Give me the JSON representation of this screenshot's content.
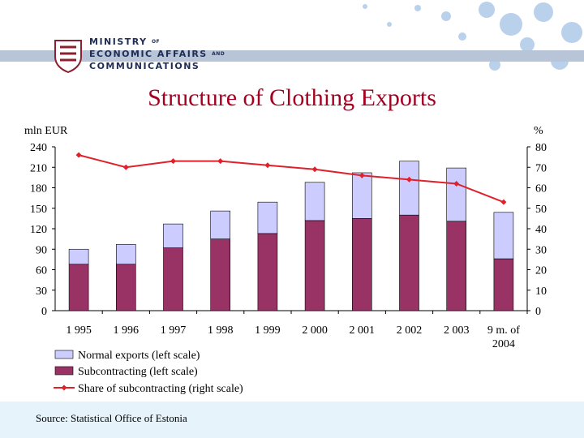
{
  "header": {
    "ministry_line1": "MINISTRY",
    "ministry_of": "OF",
    "ministry_line2": "ECONOMIC AFFAIRS",
    "ministry_and": "AND",
    "ministry_line3": "COMMUNICATIONS"
  },
  "source": "Source: Statistical Office of Estonia",
  "colors": {
    "normal": "#ccccff",
    "subcontracting": "#993366",
    "share": "#e0202a",
    "title": "#a50021"
  },
  "chart_data": {
    "type": "bar",
    "title": "Structure of Clothing Exports",
    "ylabel": "mln EUR",
    "y2label": "%",
    "ylim": [
      0,
      240
    ],
    "y2lim": [
      0,
      80
    ],
    "yticks": [
      "0",
      "30",
      "60",
      "90",
      "120",
      "150",
      "180",
      "210",
      "240"
    ],
    "y2ticks": [
      "0",
      "10",
      "20",
      "30",
      "40",
      "50",
      "60",
      "70",
      "80"
    ],
    "categories": [
      "1 995",
      "1 996",
      "1 997",
      "1 998",
      "1 999",
      "2 000",
      "2 001",
      "2 002",
      "2 003",
      "9 m. of 2004"
    ],
    "stacked": true,
    "series": [
      {
        "name": "Subcontracting (left scale)",
        "axis": "left",
        "kind": "bar",
        "values": [
          68,
          68,
          92,
          105,
          113,
          132,
          135,
          140,
          131,
          76
        ]
      },
      {
        "name": "Normal exports (left scale)",
        "axis": "left",
        "kind": "bar",
        "values": [
          22,
          29,
          35,
          41,
          46,
          56,
          67,
          79,
          78,
          68
        ]
      },
      {
        "name": "Share of subcontracting (right scale)",
        "axis": "right",
        "kind": "line",
        "values": [
          76,
          70,
          73,
          73,
          71,
          69,
          66,
          64,
          62,
          53
        ]
      }
    ],
    "legend": [
      "Normal exports (left scale)",
      "Subcontracting (left scale)",
      "Share of subcontracting (right scale)"
    ],
    "grid": false,
    "legend_position": "bottom-left"
  }
}
